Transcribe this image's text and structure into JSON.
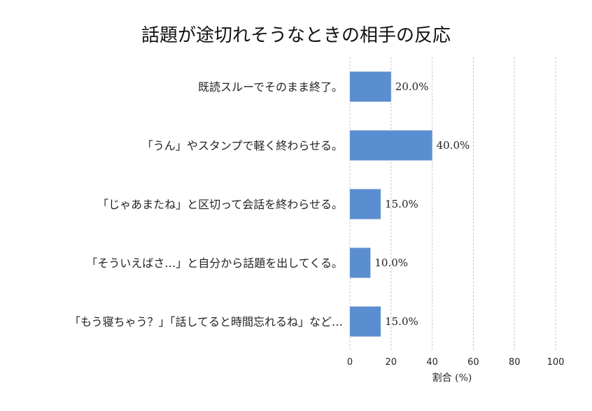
{
  "chart_data": {
    "type": "bar",
    "orientation": "horizontal",
    "title": "話題が途切れそうなときの相手の反応",
    "xlabel": "割合 (%)",
    "ylabel": "",
    "xlim": [
      0,
      100
    ],
    "x_ticks": [
      "0",
      "20",
      "40",
      "60",
      "80",
      "100"
    ],
    "grid": "vertical dashed",
    "categories": [
      "既読スルーでそのまま終了。",
      "「うん」やスタンプで軽く終わらせる。",
      "「じゃあまたね」と区切って会話を終わらせる。",
      "「そういえばさ…」と自分から話題を出してくる。",
      "「もう寝ちゃう？」「話してると時間忘れるね」など…"
    ],
    "values": [
      20.0,
      40.0,
      15.0,
      10.0,
      15.0
    ],
    "value_labels": [
      "20.0%",
      "40.0%",
      "15.0%",
      "10.0%",
      "15.0%"
    ],
    "bar_color": "#5b8ed1"
  }
}
